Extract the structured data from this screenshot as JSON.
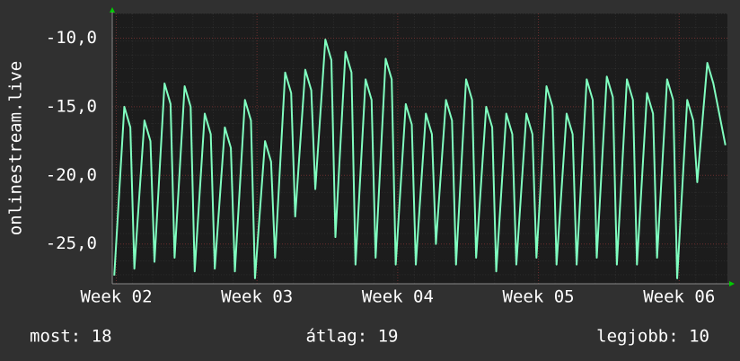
{
  "chart_data": {
    "type": "line",
    "y_label": "onlinestream.live",
    "x": [
      6.9,
      7.4,
      7.7,
      7.9,
      8.4,
      8.7,
      8.9,
      9.4,
      9.7,
      9.9,
      10.4,
      10.7,
      10.9,
      11.4,
      11.7,
      11.9,
      12.4,
      12.7,
      12.9,
      13.4,
      13.7,
      13.9,
      14.4,
      14.7,
      14.9,
      15.4,
      15.7,
      15.9,
      16.4,
      16.7,
      16.9,
      17.4,
      17.7,
      17.9,
      18.4,
      18.7,
      18.9,
      19.4,
      19.7,
      19.9,
      20.4,
      20.7,
      20.9,
      21.4,
      21.7,
      21.9,
      22.4,
      22.7,
      22.9,
      23.4,
      23.7,
      23.9,
      24.4,
      24.7,
      24.9,
      25.4,
      25.7,
      25.9,
      26.4,
      26.7,
      26.9,
      27.4,
      27.7,
      27.9,
      28.4,
      28.7,
      28.9,
      29.4,
      29.7,
      29.9,
      30.4,
      30.7,
      30.9,
      31.4,
      31.7,
      31.9,
      32.4,
      32.7,
      32.9,
      33.4,
      33.7,
      33.9,
      34.4,
      34.7,
      34.9,
      35.4,
      35.7,
      35.9,
      36.4,
      36.7,
      37.3
    ],
    "series": [
      {
        "name": null,
        "color": "#80ffc0",
        "values": [
          -27.3,
          -15.0,
          -16.5,
          -26.8,
          -16.0,
          -17.5,
          -26.3,
          -13.3,
          -14.8,
          -26.0,
          -13.5,
          -15.0,
          -27.0,
          -15.5,
          -17.0,
          -26.8,
          -16.5,
          -18.0,
          -27.0,
          -14.5,
          -16.0,
          -27.5,
          -17.5,
          -19.0,
          -26.0,
          -12.5,
          -14.0,
          -23.0,
          -12.3,
          -13.8,
          -21.0,
          -10.1,
          -11.6,
          -24.5,
          -11.0,
          -12.5,
          -26.5,
          -13.0,
          -14.5,
          -26.0,
          -11.5,
          -13.0,
          -26.5,
          -14.8,
          -16.3,
          -26.5,
          -15.5,
          -17.0,
          -25.0,
          -14.5,
          -16.0,
          -26.5,
          -13.0,
          -14.5,
          -26.0,
          -15.0,
          -16.5,
          -27.0,
          -15.5,
          -17.0,
          -26.5,
          -15.5,
          -17.0,
          -26.0,
          -13.5,
          -15.0,
          -26.5,
          -15.5,
          -17.0,
          -26.5,
          -13.0,
          -14.5,
          -26.0,
          -12.8,
          -14.3,
          -26.5,
          -13.0,
          -14.5,
          -26.5,
          -14.0,
          -15.5,
          -26.0,
          -13.0,
          -14.5,
          -27.5,
          -14.5,
          -16.0,
          -20.5,
          -11.8,
          -13.3,
          -17.8
        ]
      }
    ],
    "xlim": [
      6.8,
      37.4
    ],
    "xticks": [
      {
        "value": 7,
        "label": "Week 02"
      },
      {
        "value": 14,
        "label": "Week 03"
      },
      {
        "value": 21,
        "label": "Week 04"
      },
      {
        "value": 28,
        "label": "Week 05"
      },
      {
        "value": 35,
        "label": "Week 06"
      }
    ],
    "ylim": [
      -27.9,
      -8.2
    ],
    "yticks": [
      {
        "value": -10,
        "label": "-10,0"
      },
      {
        "value": -15,
        "label": "-15,0"
      },
      {
        "value": -20,
        "label": "-20,0"
      },
      {
        "value": -25,
        "label": "-25,0"
      }
    ],
    "grid": true,
    "stats": [
      "most: 18",
      "átlag: 19",
      "legjobb: 10"
    ]
  }
}
